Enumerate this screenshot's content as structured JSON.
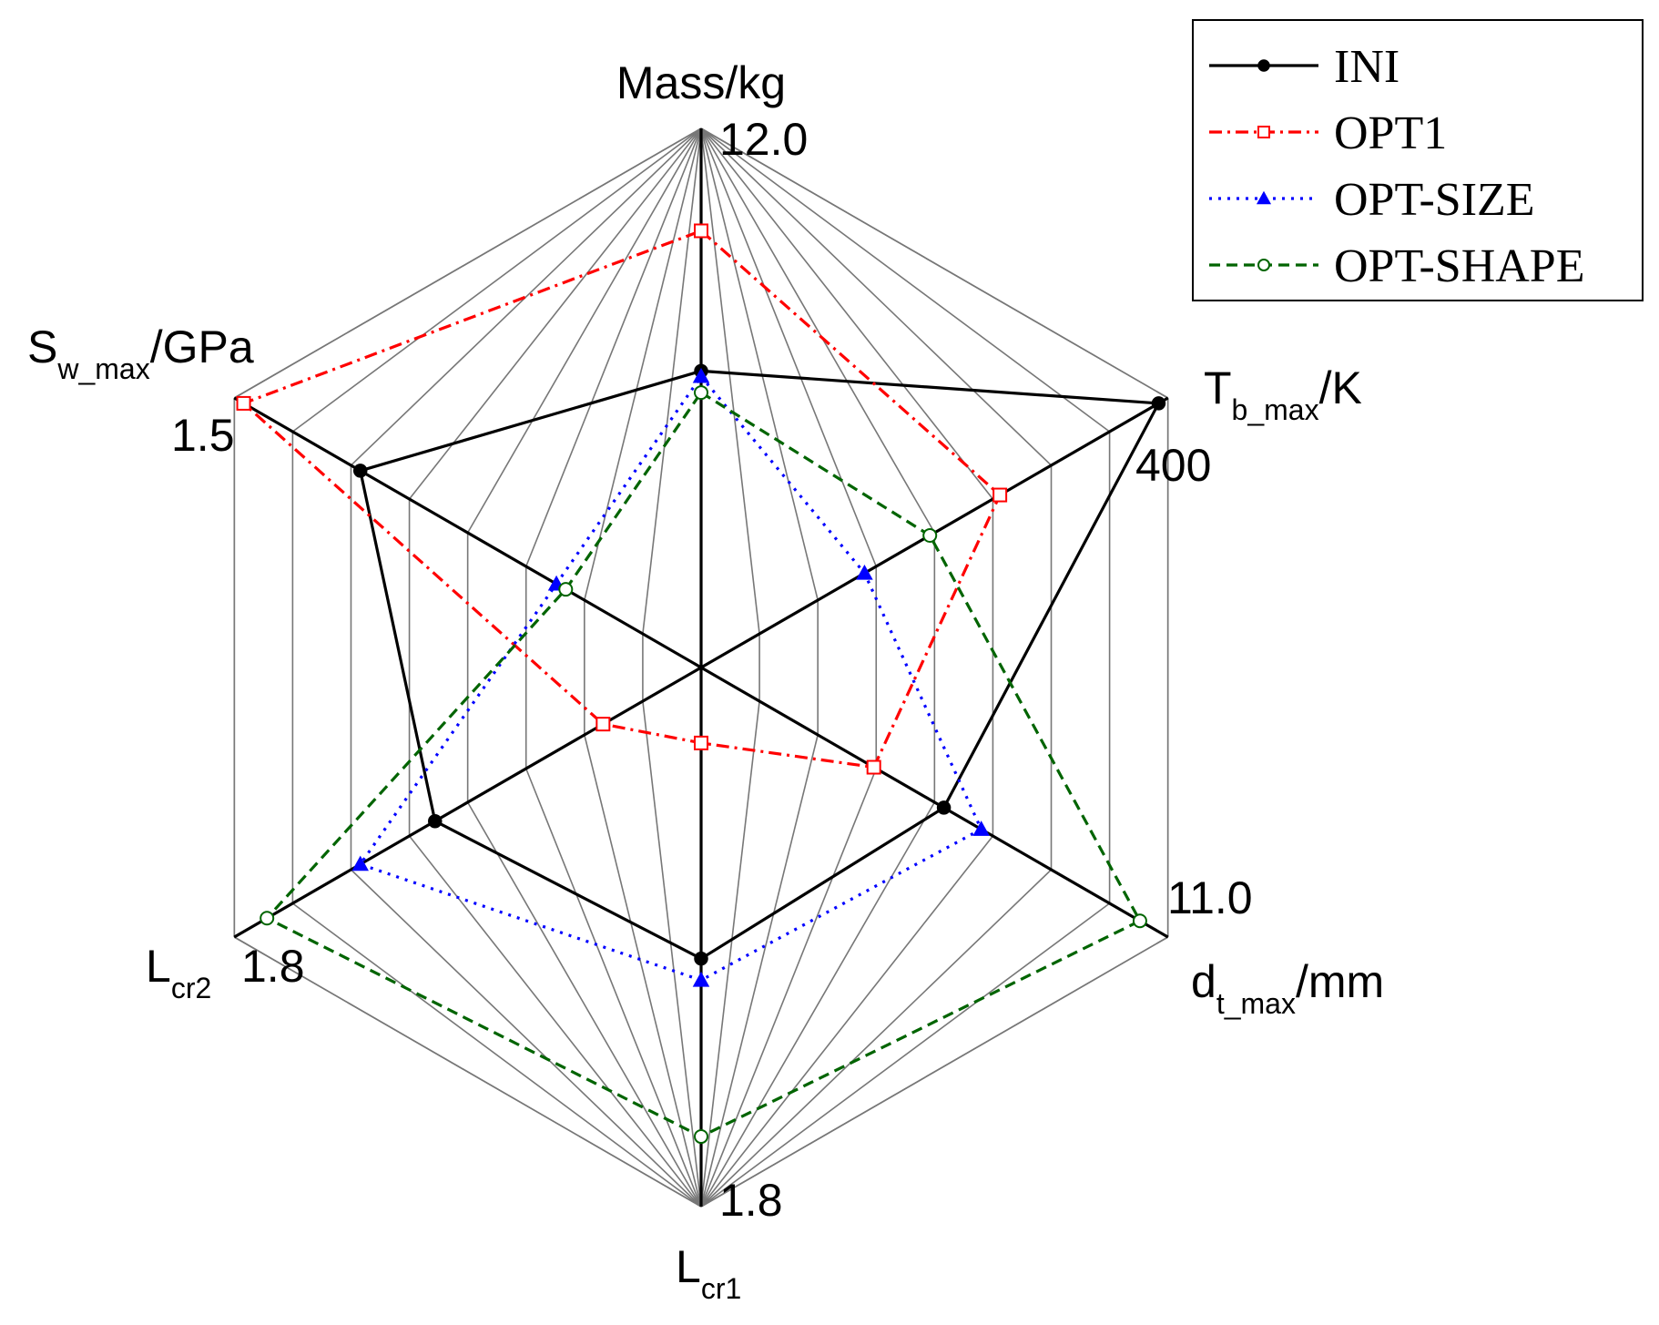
{
  "chart_data": {
    "type": "radar",
    "axes": [
      {
        "key": "mass",
        "label": "Mass/kg",
        "label_main": "Mass",
        "label_sub": "",
        "label_tail": "/kg",
        "max_label": "12.0"
      },
      {
        "key": "tb",
        "label": "Tb_max/K",
        "label_main": "T",
        "label_sub": "b_max",
        "label_tail": "/K",
        "max_label": "400"
      },
      {
        "key": "dt",
        "label": "dt_max/mm",
        "label_main": "d",
        "label_sub": "t_max",
        "label_tail": "/mm",
        "max_label": "11.0"
      },
      {
        "key": "lcr1",
        "label": "Lcr1",
        "label_main": "L",
        "label_sub": "cr1",
        "label_tail": "",
        "max_label": "1.8"
      },
      {
        "key": "lcr2",
        "label": "Lcr2",
        "label_main": "L",
        "label_sub": "cr2",
        "label_tail": "",
        "max_label": "1.8"
      },
      {
        "key": "sw",
        "label": "Sw_max/GPa",
        "label_main": "S",
        "label_sub": "w_max",
        "label_tail": "/GPa",
        "max_label": "1.5"
      }
    ],
    "rings": 8,
    "scale_note": "values normalized to each axis maximum (0-1)",
    "series": [
      {
        "name": "INI",
        "color": "#000000",
        "dash": "solid",
        "marker": "filled-circle",
        "values": [
          0.55,
          0.98,
          0.52,
          0.54,
          0.57,
          0.73
        ]
      },
      {
        "name": "OPT1",
        "color": "#ff0000",
        "dash": "dash-dot",
        "marker": "open-square",
        "values": [
          0.81,
          0.64,
          0.37,
          0.14,
          0.21,
          0.98
        ]
      },
      {
        "name": "OPT-SIZE",
        "color": "#0000ff",
        "dash": "dotted",
        "marker": "filled-triangle",
        "values": [
          0.54,
          0.35,
          0.6,
          0.58,
          0.73,
          0.31
        ]
      },
      {
        "name": "OPT-SHAPE",
        "color": "#006400",
        "dash": "dashed",
        "marker": "open-circle",
        "values": [
          0.51,
          0.49,
          0.94,
          0.87,
          0.93,
          0.29
        ]
      }
    ],
    "legend_position": "top-right"
  }
}
